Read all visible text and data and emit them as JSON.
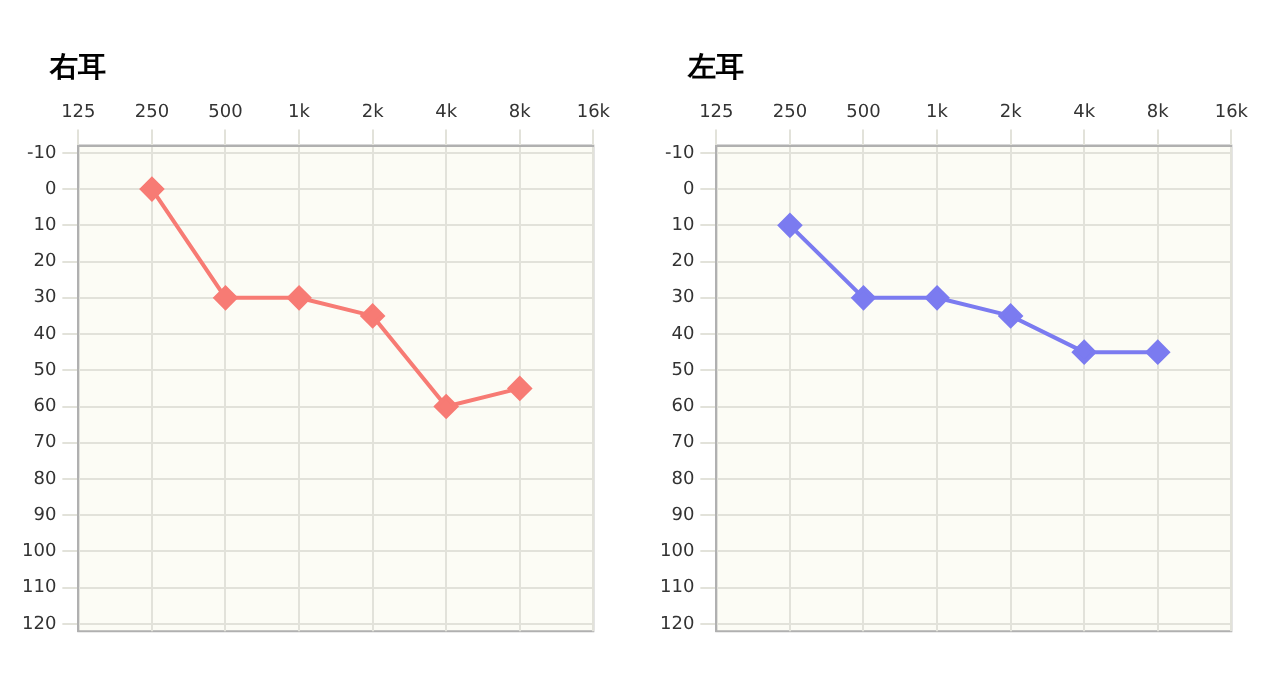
{
  "chart_data": [
    {
      "type": "line",
      "title": "右耳",
      "categories": [
        "125",
        "250",
        "500",
        "1k",
        "2k",
        "4k",
        "8k",
        "16k"
      ],
      "series": [
        {
          "color": "#f77b74",
          "values": [
            null,
            0,
            30,
            30,
            35,
            60,
            55,
            null
          ]
        }
      ],
      "ylim": [
        122,
        -12
      ],
      "yticks": [
        -10,
        0,
        10,
        20,
        30,
        40,
        50,
        60,
        70,
        80,
        90,
        100,
        110,
        120
      ],
      "grid": true,
      "marker": "diamond"
    },
    {
      "type": "line",
      "title": "左耳",
      "categories": [
        "125",
        "250",
        "500",
        "1k",
        "2k",
        "4k",
        "8k",
        "16k"
      ],
      "series": [
        {
          "color": "#7b7bf0",
          "values": [
            null,
            10,
            30,
            30,
            35,
            45,
            45,
            null
          ]
        }
      ],
      "ylim": [
        122,
        -12
      ],
      "yticks": [
        -10,
        0,
        10,
        20,
        30,
        40,
        50,
        60,
        70,
        80,
        90,
        100,
        110,
        120
      ],
      "grid": true,
      "marker": "diamond"
    }
  ]
}
